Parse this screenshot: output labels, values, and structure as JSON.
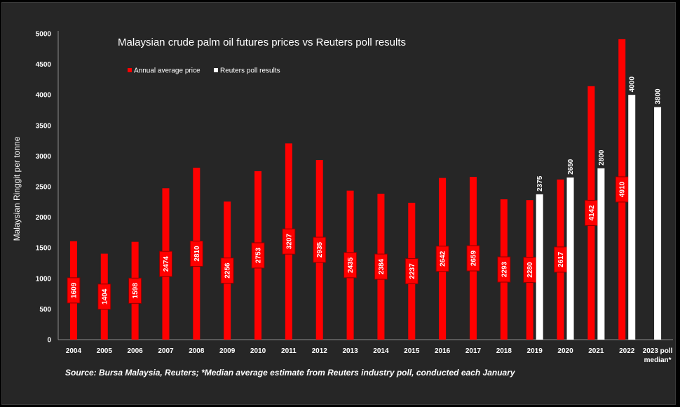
{
  "chart_data": {
    "type": "bar",
    "title": "Malaysian crude palm oil futures prices vs Reuters poll results",
    "ylabel": "Malaysian Ringgit per tonne",
    "xlabel": "",
    "ylim": [
      0,
      5000
    ],
    "yticks": [
      0,
      500,
      1000,
      1500,
      2000,
      2500,
      3000,
      3500,
      4000,
      4500,
      5000
    ],
    "categories": [
      "2004",
      "2005",
      "2006",
      "2007",
      "2008",
      "2009",
      "2010",
      "2011",
      "2012",
      "2013",
      "2014",
      "2015",
      "2016",
      "2017",
      "2018",
      "2019",
      "2020",
      "2021",
      "2022",
      "2023 poll median*"
    ],
    "series": [
      {
        "name": "Annual average price",
        "color": "#ff0000",
        "values": [
          1609,
          1404,
          1598,
          2474,
          2810,
          2256,
          2753,
          3207,
          2935,
          2435,
          2384,
          2237,
          2642,
          2659,
          2293,
          2280,
          2617,
          4142,
          4910,
          null
        ]
      },
      {
        "name": "Reuters poll results",
        "color": "#ffffff",
        "values": [
          null,
          null,
          null,
          null,
          null,
          null,
          null,
          null,
          null,
          null,
          null,
          null,
          null,
          null,
          null,
          2375,
          2650,
          2800,
          4000,
          3800
        ]
      }
    ],
    "legend_position": "top-left",
    "source": "Source: Bursa Malaysia, Reuters; *Median average estimate from Reuters industry poll, conducted each January"
  }
}
